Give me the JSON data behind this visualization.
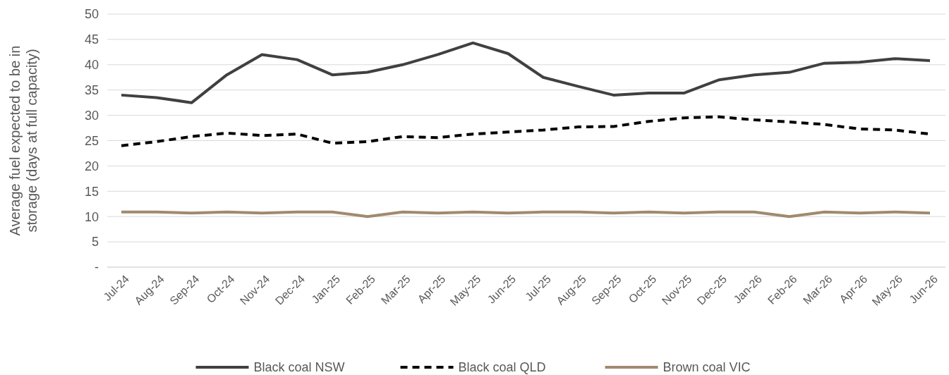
{
  "chart_data": {
    "type": "line",
    "ylabel": "Average fuel expected to be in storage (days at full capacity)",
    "categories": [
      "Jul-24",
      "Aug-24",
      "Sep-24",
      "Oct-24",
      "Nov-24",
      "Dec-24",
      "Jan-25",
      "Feb-25",
      "Mar-25",
      "Apr-25",
      "May-25",
      "Jun-25",
      "Jul-25",
      "Aug-25",
      "Sep-25",
      "Oct-25",
      "Nov-25",
      "Dec-25",
      "Jan-26",
      "Feb-26",
      "Mar-26",
      "Apr-26",
      "May-26",
      "Jun-26"
    ],
    "series": [
      {
        "name": "Black coal NSW",
        "color": "#404040",
        "line_style": "solid",
        "values": [
          34,
          33.5,
          32.5,
          38,
          42,
          41,
          38,
          38.5,
          40,
          42,
          44.3,
          42.2,
          37.5,
          35.7,
          34,
          34.4,
          34.4,
          37,
          38,
          38.5,
          40.3,
          40.5,
          41.2,
          40.8
        ]
      },
      {
        "name": "Black coal QLD",
        "color": "#000000",
        "line_style": "dashed",
        "values": [
          24,
          24.8,
          25.8,
          26.5,
          26,
          26.3,
          24.5,
          24.8,
          25.8,
          25.6,
          26.3,
          26.7,
          27.1,
          27.7,
          27.8,
          28.8,
          29.5,
          29.7,
          29.1,
          28.7,
          28.2,
          27.3,
          27.1,
          26.3
        ]
      },
      {
        "name": "Brown coal VIC",
        "color": "#a08a6e",
        "line_style": "solid",
        "values": [
          10.9,
          10.9,
          10.7,
          10.9,
          10.7,
          10.9,
          10.9,
          10,
          10.9,
          10.7,
          10.9,
          10.7,
          10.9,
          10.9,
          10.7,
          10.9,
          10.7,
          10.9,
          10.9,
          10,
          10.9,
          10.7,
          10.9,
          10.7
        ]
      }
    ],
    "ylim": [
      0,
      50
    ],
    "yticks": [
      {
        "value": 0,
        "label": "-"
      },
      5,
      10,
      15,
      20,
      25,
      30,
      35,
      40,
      45,
      50
    ],
    "grid": "y",
    "legend": "bottom",
    "marker": "none"
  }
}
